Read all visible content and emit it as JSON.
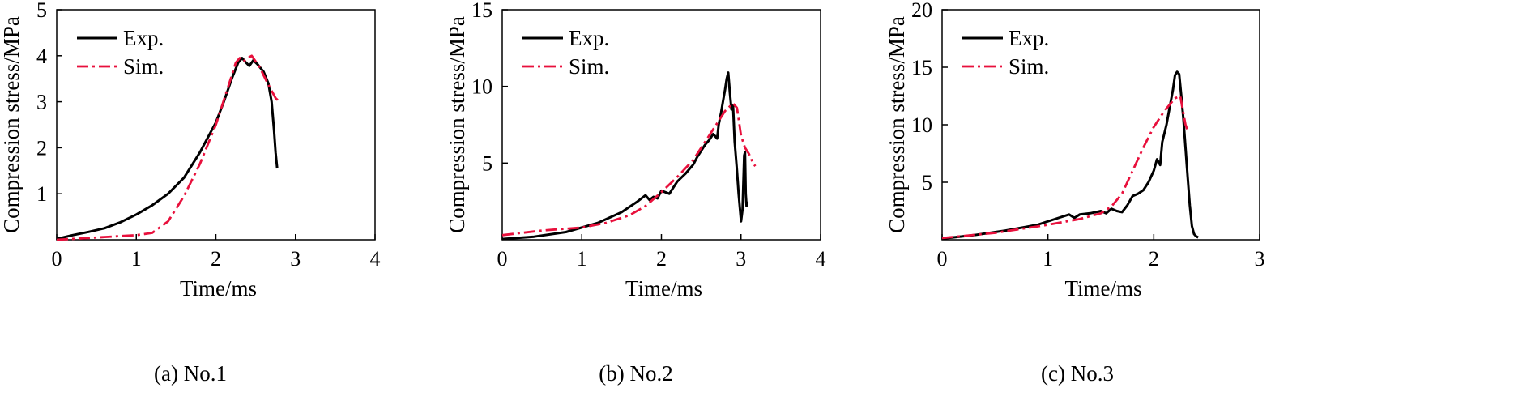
{
  "chart_data": [
    {
      "type": "line",
      "caption": "(a) No.1",
      "xlabel": "Time/ms",
      "ylabel": "Compression stress/MPa",
      "xlim": [
        0,
        4
      ],
      "ylim": [
        0,
        5
      ],
      "xticks": [
        0,
        1,
        2,
        3,
        4
      ],
      "yticks": [
        1,
        2,
        3,
        4,
        5
      ],
      "legend": "top-left",
      "series": [
        {
          "name": "Exp.",
          "color": "#000000",
          "dash": "solid",
          "points": [
            [
              0.0,
              0.02
            ],
            [
              0.2,
              0.1
            ],
            [
              0.4,
              0.17
            ],
            [
              0.6,
              0.25
            ],
            [
              0.8,
              0.38
            ],
            [
              1.0,
              0.55
            ],
            [
              1.2,
              0.75
            ],
            [
              1.4,
              1.0
            ],
            [
              1.6,
              1.35
            ],
            [
              1.8,
              1.9
            ],
            [
              2.0,
              2.55
            ],
            [
              2.1,
              3.0
            ],
            [
              2.2,
              3.5
            ],
            [
              2.28,
              3.85
            ],
            [
              2.33,
              3.95
            ],
            [
              2.38,
              3.85
            ],
            [
              2.42,
              3.78
            ],
            [
              2.47,
              3.9
            ],
            [
              2.52,
              3.82
            ],
            [
              2.6,
              3.65
            ],
            [
              2.66,
              3.4
            ],
            [
              2.7,
              3.0
            ],
            [
              2.73,
              2.4
            ],
            [
              2.75,
              1.9
            ],
            [
              2.77,
              1.55
            ]
          ]
        },
        {
          "name": "Sim.",
          "color": "#e8103c",
          "dash": "dashdot",
          "points": [
            [
              0.0,
              0.0
            ],
            [
              0.5,
              0.05
            ],
            [
              1.0,
              0.1
            ],
            [
              1.2,
              0.15
            ],
            [
              1.4,
              0.4
            ],
            [
              1.6,
              0.95
            ],
            [
              1.8,
              1.65
            ],
            [
              2.0,
              2.5
            ],
            [
              2.15,
              3.3
            ],
            [
              2.25,
              3.85
            ],
            [
              2.3,
              3.95
            ],
            [
              2.35,
              3.88
            ],
            [
              2.4,
              3.95
            ],
            [
              2.45,
              4.0
            ],
            [
              2.55,
              3.75
            ],
            [
              2.65,
              3.4
            ],
            [
              2.75,
              3.08
            ],
            [
              2.8,
              3.0
            ]
          ]
        }
      ]
    },
    {
      "type": "line",
      "caption": "(b) No.2",
      "xlabel": "Time/ms",
      "ylabel": "Compression stress/MPa",
      "xlim": [
        0,
        4
      ],
      "ylim": [
        0,
        15
      ],
      "xticks": [
        0,
        1,
        2,
        3,
        4
      ],
      "yticks": [
        5,
        10,
        15
      ],
      "legend": "top-left",
      "series": [
        {
          "name": "Exp.",
          "color": "#000000",
          "dash": "solid",
          "points": [
            [
              0.0,
              0.05
            ],
            [
              0.4,
              0.2
            ],
            [
              0.8,
              0.5
            ],
            [
              1.2,
              1.1
            ],
            [
              1.5,
              1.8
            ],
            [
              1.7,
              2.5
            ],
            [
              1.8,
              2.9
            ],
            [
              1.85,
              2.6
            ],
            [
              1.9,
              2.8
            ],
            [
              1.95,
              2.7
            ],
            [
              2.0,
              3.2
            ],
            [
              2.05,
              3.1
            ],
            [
              2.1,
              3.0
            ],
            [
              2.15,
              3.4
            ],
            [
              2.2,
              3.8
            ],
            [
              2.3,
              4.3
            ],
            [
              2.4,
              4.9
            ],
            [
              2.45,
              5.4
            ],
            [
              2.5,
              5.8
            ],
            [
              2.55,
              6.2
            ],
            [
              2.6,
              6.5
            ],
            [
              2.65,
              6.9
            ],
            [
              2.7,
              6.6
            ],
            [
              2.72,
              7.5
            ],
            [
              2.75,
              8.3
            ],
            [
              2.78,
              9.2
            ],
            [
              2.8,
              9.8
            ],
            [
              2.82,
              10.5
            ],
            [
              2.84,
              10.9
            ],
            [
              2.86,
              9.6
            ],
            [
              2.88,
              8.5
            ],
            [
              2.9,
              8.8
            ],
            [
              2.92,
              6.4
            ],
            [
              2.95,
              4.5
            ],
            [
              2.97,
              3.0
            ],
            [
              2.99,
              1.8
            ],
            [
              3.0,
              1.2
            ],
            [
              3.02,
              2.0
            ],
            [
              3.04,
              5.5
            ],
            [
              3.05,
              5.7
            ],
            [
              3.06,
              3.0
            ],
            [
              3.07,
              2.2
            ],
            [
              3.08,
              2.5
            ]
          ]
        },
        {
          "name": "Sim.",
          "color": "#e8103c",
          "dash": "dashdot",
          "points": [
            [
              0.0,
              0.3
            ],
            [
              0.5,
              0.6
            ],
            [
              1.0,
              0.8
            ],
            [
              1.3,
              1.1
            ],
            [
              1.6,
              1.6
            ],
            [
              1.8,
              2.2
            ],
            [
              2.0,
              3.1
            ],
            [
              2.2,
              4.1
            ],
            [
              2.4,
              5.2
            ],
            [
              2.5,
              6.0
            ],
            [
              2.6,
              6.8
            ],
            [
              2.7,
              7.6
            ],
            [
              2.8,
              8.4
            ],
            [
              2.9,
              8.9
            ],
            [
              2.95,
              8.6
            ],
            [
              3.0,
              6.8
            ],
            [
              3.05,
              6.0
            ],
            [
              3.1,
              5.6
            ],
            [
              3.15,
              5.0
            ],
            [
              3.18,
              4.8
            ]
          ]
        }
      ]
    },
    {
      "type": "line",
      "caption": "(c) No.3",
      "xlabel": "Time/ms",
      "ylabel": "Compression stress/MPa",
      "xlim": [
        0,
        3
      ],
      "ylim": [
        0,
        20
      ],
      "xticks": [
        0,
        1,
        2,
        3
      ],
      "yticks": [
        5,
        10,
        15,
        20
      ],
      "legend": "top-left",
      "series": [
        {
          "name": "Exp.",
          "color": "#000000",
          "dash": "solid",
          "points": [
            [
              0.0,
              0.1
            ],
            [
              0.3,
              0.4
            ],
            [
              0.6,
              0.8
            ],
            [
              0.9,
              1.3
            ],
            [
              1.1,
              1.9
            ],
            [
              1.2,
              2.2
            ],
            [
              1.25,
              1.9
            ],
            [
              1.3,
              2.2
            ],
            [
              1.4,
              2.3
            ],
            [
              1.5,
              2.5
            ],
            [
              1.55,
              2.3
            ],
            [
              1.6,
              2.7
            ],
            [
              1.65,
              2.5
            ],
            [
              1.7,
              2.4
            ],
            [
              1.75,
              3.0
            ],
            [
              1.8,
              3.8
            ],
            [
              1.85,
              4.0
            ],
            [
              1.9,
              4.3
            ],
            [
              1.95,
              5.0
            ],
            [
              2.0,
              6.0
            ],
            [
              2.03,
              7.0
            ],
            [
              2.06,
              6.5
            ],
            [
              2.08,
              8.5
            ],
            [
              2.12,
              10.0
            ],
            [
              2.15,
              11.5
            ],
            [
              2.18,
              13.0
            ],
            [
              2.2,
              14.3
            ],
            [
              2.22,
              14.6
            ],
            [
              2.24,
              14.4
            ],
            [
              2.26,
              12.5
            ],
            [
              2.28,
              10.5
            ],
            [
              2.3,
              8.0
            ],
            [
              2.32,
              5.5
            ],
            [
              2.34,
              3.0
            ],
            [
              2.36,
              1.2
            ],
            [
              2.38,
              0.5
            ],
            [
              2.4,
              0.3
            ],
            [
              2.42,
              0.2
            ]
          ]
        },
        {
          "name": "Sim.",
          "color": "#e8103c",
          "dash": "dashdot",
          "points": [
            [
              0.0,
              0.15
            ],
            [
              0.5,
              0.6
            ],
            [
              1.0,
              1.3
            ],
            [
              1.3,
              1.8
            ],
            [
              1.5,
              2.3
            ],
            [
              1.6,
              2.9
            ],
            [
              1.7,
              4.0
            ],
            [
              1.8,
              6.0
            ],
            [
              1.9,
              8.0
            ],
            [
              2.0,
              9.8
            ],
            [
              2.1,
              11.2
            ],
            [
              2.2,
              12.3
            ],
            [
              2.25,
              12.5
            ],
            [
              2.28,
              11.0
            ],
            [
              2.3,
              10.0
            ],
            [
              2.32,
              9.5
            ]
          ]
        }
      ]
    }
  ]
}
